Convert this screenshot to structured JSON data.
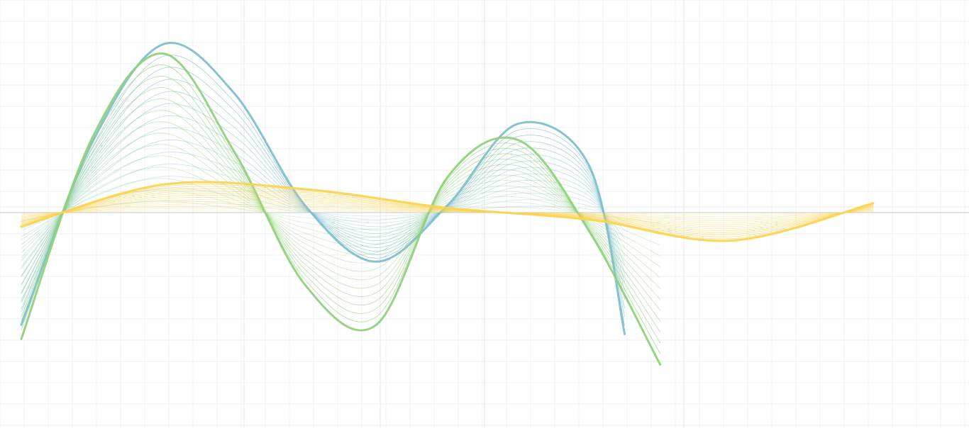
{
  "chart_data": {
    "type": "line",
    "title": "",
    "xlabel": "",
    "ylabel": "",
    "grid": true,
    "legend": "none",
    "series": [
      {
        "color": "#7fbfcf",
        "x": [
          -1.0,
          -0.8,
          -0.6,
          -0.4,
          -0.2,
          0.0,
          0.2,
          0.4,
          0.6,
          0.7
        ],
        "values": [
          -4.8,
          3.0,
          7.2,
          5.1,
          0.3,
          -2.1,
          0.3,
          3.8,
          2.0,
          -5.2
        ]
      },
      {
        "color": "#90d27c",
        "x": [
          -1.0,
          -0.8,
          -0.6,
          -0.4,
          -0.2,
          0.0,
          0.2,
          0.4,
          0.6,
          0.8
        ],
        "values": [
          -5.4,
          3.2,
          6.8,
          2.6,
          -3.1,
          -4.8,
          1.5,
          3.1,
          -0.8,
          -6.5
        ]
      },
      {
        "color": "#fdd34e",
        "x": [
          -1.0,
          -0.6,
          -0.2,
          0.2,
          0.6,
          1.0,
          1.4
        ],
        "values": [
          -0.6,
          1.2,
          1.0,
          0.2,
          -0.3,
          -1.2,
          0.4
        ]
      }
    ]
  }
}
